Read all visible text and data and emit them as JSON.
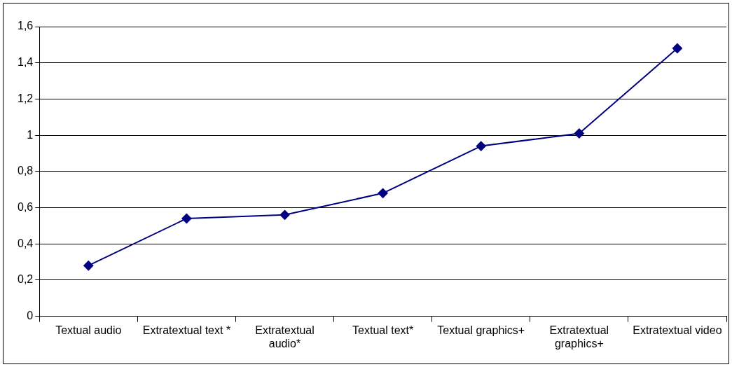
{
  "chart_data": {
    "type": "line",
    "categories": [
      "Textual audio",
      "Extratextual text *",
      "Extratextual audio*",
      "Textual text*",
      "Textual graphics+",
      "Extratextual graphics+",
      "Extratextual video"
    ],
    "series": [
      {
        "color": "#000080",
        "values": [
          0.28,
          0.54,
          0.56,
          0.68,
          0.94,
          1.01,
          1.48
        ]
      }
    ],
    "ylim": [
      0,
      1.6
    ],
    "yticks": [
      {
        "value": 0,
        "label": "0"
      },
      {
        "value": 0.2,
        "label": "0,2"
      },
      {
        "value": 0.4,
        "label": "0,4"
      },
      {
        "value": 0.6,
        "label": "0,6"
      },
      {
        "value": 0.8,
        "label": "0,8"
      },
      {
        "value": 1,
        "label": "1"
      },
      {
        "value": 1.2,
        "label": "1,2"
      },
      {
        "value": 1.4,
        "label": "1,4"
      },
      {
        "value": 1.6,
        "label": "1,6"
      }
    ],
    "grid": "y",
    "legend": false,
    "marker": "diamond",
    "line_style": "solid"
  }
}
